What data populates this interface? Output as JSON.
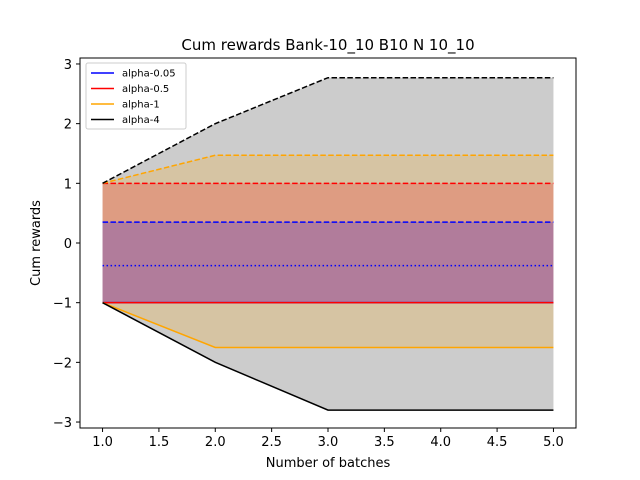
{
  "chart_data": {
    "type": "line",
    "title": "Cum rewards Bank-10_10 B10 N 10_10",
    "xlabel": "Number of batches",
    "ylabel": "Cum rewards",
    "xlim": [
      0.8,
      5.2
    ],
    "ylim": [
      -3.1,
      3.1
    ],
    "x": [
      1,
      2,
      3,
      4,
      5
    ],
    "xticks": [
      1.0,
      1.5,
      2.0,
      2.5,
      3.0,
      3.5,
      4.0,
      4.5,
      5.0
    ],
    "xtick_labels": [
      "1.0",
      "1.5",
      "2.0",
      "2.5",
      "3.0",
      "3.5",
      "4.0",
      "4.5",
      "5.0"
    ],
    "yticks": [
      -3,
      -2,
      -1,
      0,
      1,
      2,
      3
    ],
    "ytick_labels": [
      "−3",
      "−2",
      "−1",
      "0",
      "1",
      "2",
      "3"
    ],
    "grid": false,
    "legend_position": "top-left",
    "series": [
      {
        "name": "alpha-0.05",
        "color": "#0000ff",
        "fill_alpha": 0.2,
        "lower": [
          -1,
          -1,
          -1,
          -1,
          -1
        ],
        "mean": [
          -0.38,
          -0.38,
          -0.38,
          -0.38,
          -0.38
        ],
        "upper": [
          0.35,
          0.35,
          0.35,
          0.35,
          0.35
        ]
      },
      {
        "name": "alpha-0.5",
        "color": "#ff0000",
        "fill_alpha": 0.2,
        "lower": [
          -1,
          -1,
          -1,
          -1,
          -1
        ],
        "upper": [
          1,
          1,
          1,
          1,
          1
        ]
      },
      {
        "name": "alpha-1",
        "color": "#ffa500",
        "fill_alpha": 0.2,
        "lower": [
          -1,
          -1.75,
          -1.75,
          -1.75,
          -1.75
        ],
        "upper": [
          1,
          1.47,
          1.47,
          1.47,
          1.47
        ]
      },
      {
        "name": "alpha-4",
        "color": "#000000",
        "fill_alpha": 0.2,
        "lower": [
          -1,
          -2,
          -2.8,
          -2.8,
          -2.8
        ],
        "upper": [
          1,
          2,
          2.77,
          2.77,
          2.77
        ]
      }
    ]
  }
}
